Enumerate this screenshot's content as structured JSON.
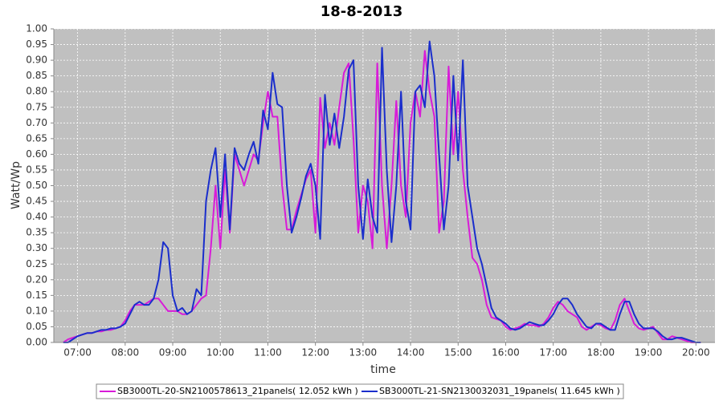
{
  "chart_data": {
    "type": "line",
    "title": "18-8-2013",
    "xlabel": "time",
    "ylabel": "Watt/Wp",
    "grid": true,
    "legend": "bottom",
    "xlim": [
      6.5,
      20.4
    ],
    "ylim": [
      0,
      1
    ],
    "xticks": [
      {
        "value": 7,
        "label": "07:00"
      },
      {
        "value": 8,
        "label": "08:00"
      },
      {
        "value": 9,
        "label": "09:00"
      },
      {
        "value": 10,
        "label": "10:00"
      },
      {
        "value": 11,
        "label": "11:00"
      },
      {
        "value": 12,
        "label": "12:00"
      },
      {
        "value": 13,
        "label": "13:00"
      },
      {
        "value": 14,
        "label": "14:00"
      },
      {
        "value": 15,
        "label": "15:00"
      },
      {
        "value": 16,
        "label": "16:00"
      },
      {
        "value": 17,
        "label": "17:00"
      },
      {
        "value": 18,
        "label": "18:00"
      },
      {
        "value": 19,
        "label": "19:00"
      },
      {
        "value": 20,
        "label": "20:00"
      }
    ],
    "yticks": [
      {
        "value": 0,
        "label": "0.00"
      },
      0.05,
      {
        "value": 0.1,
        "label": "0.10"
      },
      0.15,
      {
        "value": 0.2,
        "label": "0.20"
      },
      0.25,
      {
        "value": 0.3,
        "label": "0.30"
      },
      0.35,
      {
        "value": 0.4,
        "label": "0.40"
      },
      0.45,
      {
        "value": 0.5,
        "label": "0.50"
      },
      0.55,
      {
        "value": 0.6,
        "label": "0.60"
      },
      0.65,
      {
        "value": 0.7,
        "label": "0.70"
      },
      0.75,
      {
        "value": 0.8,
        "label": "0.80"
      },
      0.85,
      {
        "value": 0.9,
        "label": "0.90"
      },
      0.95,
      {
        "value": 1,
        "label": "1.00"
      }
    ],
    "x": [
      6.7,
      6.8,
      6.9,
      7.0,
      7.1,
      7.2,
      7.3,
      7.4,
      7.5,
      7.6,
      7.7,
      7.8,
      7.9,
      8.0,
      8.1,
      8.2,
      8.3,
      8.4,
      8.5,
      8.6,
      8.7,
      8.8,
      8.9,
      9.0,
      9.1,
      9.2,
      9.3,
      9.4,
      9.5,
      9.6,
      9.7,
      9.8,
      9.9,
      10.0,
      10.1,
      10.2,
      10.3,
      10.4,
      10.5,
      10.6,
      10.7,
      10.8,
      10.9,
      11.0,
      11.1,
      11.2,
      11.3,
      11.4,
      11.5,
      11.6,
      11.7,
      11.8,
      11.9,
      12.0,
      12.1,
      12.2,
      12.3,
      12.4,
      12.5,
      12.6,
      12.7,
      12.8,
      12.9,
      13.0,
      13.1,
      13.2,
      13.3,
      13.4,
      13.5,
      13.6,
      13.7,
      13.8,
      13.9,
      14.0,
      14.1,
      14.2,
      14.3,
      14.4,
      14.5,
      14.6,
      14.7,
      14.8,
      14.9,
      15.0,
      15.1,
      15.2,
      15.3,
      15.4,
      15.5,
      15.6,
      15.7,
      15.8,
      15.9,
      16.0,
      16.1,
      16.2,
      16.3,
      16.4,
      16.5,
      16.6,
      16.7,
      16.8,
      16.9,
      17.0,
      17.1,
      17.2,
      17.3,
      17.4,
      17.5,
      17.6,
      17.7,
      17.8,
      17.9,
      18.0,
      18.1,
      18.2,
      18.3,
      18.4,
      18.5,
      18.6,
      18.7,
      18.8,
      18.9,
      19.0,
      19.1,
      19.2,
      19.3,
      19.4,
      19.5,
      19.6,
      19.7,
      19.8,
      19.9,
      20.0,
      20.1
    ],
    "series": [
      {
        "name": "SB3000TL-20-SN2100578613_21panels( 12.052 kWh )",
        "color": "#d81bd8",
        "values": [
          0,
          0.01,
          0.015,
          0.02,
          0.025,
          0.03,
          0.03,
          0.035,
          0.035,
          0.04,
          0.04,
          0.045,
          0.05,
          0.07,
          0.1,
          0.12,
          0.12,
          0.12,
          0.13,
          0.14,
          0.14,
          0.12,
          0.1,
          0.1,
          0.1,
          0.09,
          0.09,
          0.1,
          0.12,
          0.14,
          0.15,
          0.3,
          0.5,
          0.3,
          0.55,
          0.35,
          0.6,
          0.55,
          0.5,
          0.55,
          0.6,
          0.58,
          0.7,
          0.8,
          0.72,
          0.72,
          0.5,
          0.36,
          0.36,
          0.42,
          0.47,
          0.52,
          0.55,
          0.35,
          0.78,
          0.62,
          0.7,
          0.63,
          0.75,
          0.86,
          0.89,
          0.65,
          0.35,
          0.5,
          0.45,
          0.3,
          0.89,
          0.5,
          0.3,
          0.5,
          0.77,
          0.5,
          0.4,
          0.7,
          0.8,
          0.72,
          0.93,
          0.8,
          0.72,
          0.35,
          0.45,
          0.88,
          0.6,
          0.8,
          0.55,
          0.4,
          0.27,
          0.25,
          0.2,
          0.12,
          0.08,
          0.075,
          0.07,
          0.05,
          0.04,
          0.045,
          0.05,
          0.06,
          0.055,
          0.055,
          0.05,
          0.06,
          0.08,
          0.11,
          0.13,
          0.12,
          0.1,
          0.09,
          0.08,
          0.05,
          0.04,
          0.05,
          0.06,
          0.055,
          0.045,
          0.04,
          0.07,
          0.12,
          0.14,
          0.1,
          0.06,
          0.045,
          0.04,
          0.045,
          0.05,
          0.03,
          0.01,
          0.01,
          0.02,
          0.015,
          0.01,
          0.005,
          0,
          0,
          0
        ]
      },
      {
        "name": "SB3000TL-21-SN2130032031_19panels( 11.645 kWh )",
        "color": "#1a2ecc",
        "values": [
          0,
          0,
          0.01,
          0.02,
          0.025,
          0.03,
          0.03,
          0.035,
          0.04,
          0.04,
          0.045,
          0.045,
          0.05,
          0.06,
          0.09,
          0.12,
          0.13,
          0.12,
          0.12,
          0.14,
          0.2,
          0.32,
          0.3,
          0.15,
          0.1,
          0.11,
          0.09,
          0.1,
          0.17,
          0.15,
          0.45,
          0.55,
          0.62,
          0.4,
          0.6,
          0.36,
          0.62,
          0.57,
          0.55,
          0.6,
          0.64,
          0.57,
          0.74,
          0.68,
          0.86,
          0.76,
          0.75,
          0.5,
          0.35,
          0.4,
          0.46,
          0.53,
          0.57,
          0.5,
          0.33,
          0.79,
          0.63,
          0.73,
          0.62,
          0.72,
          0.87,
          0.9,
          0.5,
          0.33,
          0.52,
          0.4,
          0.35,
          0.94,
          0.55,
          0.32,
          0.5,
          0.8,
          0.45,
          0.36,
          0.8,
          0.82,
          0.75,
          0.96,
          0.85,
          0.6,
          0.36,
          0.5,
          0.85,
          0.58,
          0.9,
          0.5,
          0.4,
          0.3,
          0.25,
          0.18,
          0.11,
          0.08,
          0.07,
          0.06,
          0.045,
          0.04,
          0.045,
          0.055,
          0.065,
          0.06,
          0.055,
          0.055,
          0.07,
          0.09,
          0.12,
          0.14,
          0.14,
          0.12,
          0.09,
          0.07,
          0.05,
          0.045,
          0.06,
          0.06,
          0.05,
          0.04,
          0.04,
          0.09,
          0.13,
          0.13,
          0.09,
          0.06,
          0.045,
          0.045,
          0.045,
          0.035,
          0.02,
          0.01,
          0.01,
          0.015,
          0.015,
          0.01,
          0.005,
          0,
          0
        ]
      }
    ]
  }
}
